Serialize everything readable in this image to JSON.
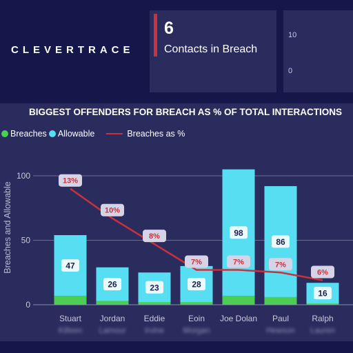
{
  "brand": {
    "name": "CLEVERTRACE"
  },
  "kpi": {
    "value": "6",
    "label": "Contacts in Breach",
    "accent_color": "#c8323c"
  },
  "mini_chart": {
    "ticks": [
      "10",
      "0"
    ]
  },
  "panel": {
    "title": "BIGGEST OFFENDERS FOR BREACH AS % OF TOTAL INTERACTIONS"
  },
  "legend": {
    "breaches": "Breaches",
    "allowable": "Allowable",
    "breaches_pct": "Breaches as %",
    "breaches_color": "#4ccd53",
    "allowable_color": "#57def3",
    "line_color": "#c8323c"
  },
  "chart_data": {
    "type": "bar",
    "ylabel": "Breaches and Allowable",
    "ylim": [
      0,
      110
    ],
    "yticks": [
      0,
      50,
      100
    ],
    "categories": [
      {
        "first": "Stuart",
        "last": "Killeen"
      },
      {
        "first": "Jordan",
        "last": "Lamour"
      },
      {
        "first": "Eddie",
        "last": "Irvine"
      },
      {
        "first": "Eoin",
        "last": "Morgan"
      },
      {
        "first": "Joe Dolan",
        "last": ""
      },
      {
        "first": "Paul",
        "last": "Hewson"
      },
      {
        "first": "Ralph",
        "last": "Lauren"
      }
    ],
    "series": [
      {
        "name": "Breaches",
        "values": [
          7,
          3,
          2,
          2,
          7,
          6,
          1
        ]
      },
      {
        "name": "Allowable",
        "values": [
          47,
          26,
          23,
          28,
          98,
          86,
          16
        ]
      }
    ],
    "line": {
      "name": "Breaches as %",
      "values_pct": [
        13,
        10,
        8,
        7,
        7,
        7,
        6
      ],
      "labels": [
        "13%",
        "10%",
        "8%",
        "7%",
        "7%",
        "7%",
        "6%"
      ],
      "plot_values": [
        90,
        67,
        47,
        27,
        27,
        25,
        19
      ]
    }
  }
}
